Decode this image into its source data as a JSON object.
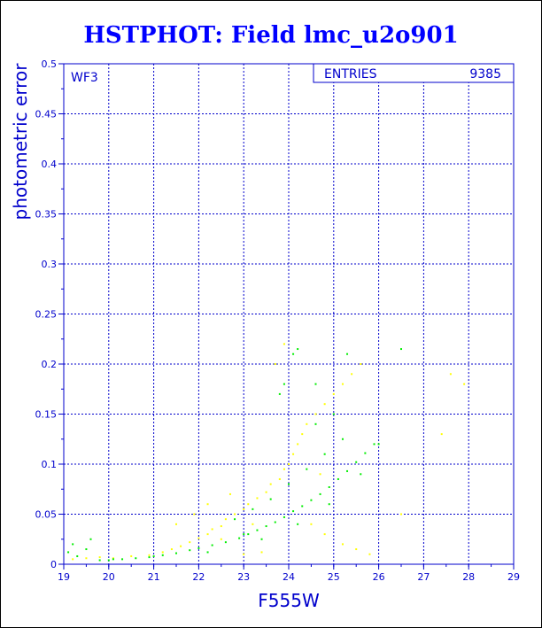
{
  "colors": {
    "axis": "#0000cc",
    "grid": "#0000cc",
    "title": "#0000ff",
    "series_yellow": "#ffff00",
    "series_green": "#00ee00"
  },
  "chart_data": {
    "type": "scatter",
    "title": "HSTPHOT: Field lmc_u2o901",
    "xlabel": "F555W",
    "ylabel": "photometric error",
    "xlim": [
      19,
      29
    ],
    "ylim": [
      0,
      0.5
    ],
    "xticks": [
      "19",
      "20",
      "21",
      "22",
      "23",
      "24",
      "25",
      "26",
      "27",
      "28",
      "29"
    ],
    "yticks": [
      "0",
      "0.05",
      "0.1",
      "0.15",
      "0.2",
      "0.25",
      "0.3",
      "0.35",
      "0.4",
      "0.45",
      "0.5"
    ],
    "grid": true,
    "chip_label": "WF3",
    "stats": {
      "label": "ENTRIES",
      "value": "9385"
    },
    "series": [
      {
        "color": "yellow",
        "points": [
          [
            19.2,
            0.005
          ],
          [
            19.5,
            0.006
          ],
          [
            19.8,
            0.007
          ],
          [
            20.1,
            0.006
          ],
          [
            20.5,
            0.008
          ],
          [
            20.9,
            0.009
          ],
          [
            21.2,
            0.012
          ],
          [
            21.4,
            0.015
          ],
          [
            21.6,
            0.018
          ],
          [
            21.8,
            0.022
          ],
          [
            22.0,
            0.026
          ],
          [
            22.2,
            0.03
          ],
          [
            22.3,
            0.035
          ],
          [
            22.5,
            0.038
          ],
          [
            22.6,
            0.045
          ],
          [
            22.8,
            0.05
          ],
          [
            23.0,
            0.055
          ],
          [
            23.1,
            0.06
          ],
          [
            23.3,
            0.066
          ],
          [
            23.5,
            0.072
          ],
          [
            23.6,
            0.08
          ],
          [
            23.8,
            0.085
          ],
          [
            23.9,
            0.095
          ],
          [
            24.0,
            0.1
          ],
          [
            24.1,
            0.11
          ],
          [
            24.2,
            0.12
          ],
          [
            24.3,
            0.13
          ],
          [
            24.4,
            0.14
          ],
          [
            24.6,
            0.15
          ],
          [
            24.8,
            0.16
          ],
          [
            25.0,
            0.17
          ],
          [
            25.2,
            0.18
          ],
          [
            25.4,
            0.19
          ],
          [
            25.6,
            0.2
          ],
          [
            23.7,
            0.2
          ],
          [
            23.9,
            0.22
          ],
          [
            24.5,
            0.04
          ],
          [
            24.8,
            0.03
          ],
          [
            25.2,
            0.02
          ],
          [
            25.5,
            0.015
          ],
          [
            25.8,
            0.01
          ],
          [
            23.0,
            0.01
          ],
          [
            23.4,
            0.012
          ],
          [
            22.7,
            0.07
          ],
          [
            22.2,
            0.06
          ],
          [
            21.9,
            0.05
          ],
          [
            21.5,
            0.04
          ],
          [
            27.6,
            0.19
          ],
          [
            27.4,
            0.13
          ],
          [
            27.9,
            0.18
          ],
          [
            26.5,
            0.05
          ],
          [
            24.7,
            0.09
          ],
          [
            23.2,
            0.04
          ],
          [
            22.5,
            0.025
          ]
        ]
      },
      {
        "color": "green",
        "points": [
          [
            19.1,
            0.012
          ],
          [
            19.2,
            0.02
          ],
          [
            19.3,
            0.008
          ],
          [
            19.5,
            0.015
          ],
          [
            19.6,
            0.025
          ],
          [
            19.8,
            0.004
          ],
          [
            20.0,
            0.004
          ],
          [
            20.3,
            0.005
          ],
          [
            20.6,
            0.006
          ],
          [
            20.9,
            0.007
          ],
          [
            21.2,
            0.009
          ],
          [
            21.5,
            0.011
          ],
          [
            21.8,
            0.014
          ],
          [
            22.0,
            0.016
          ],
          [
            22.3,
            0.019
          ],
          [
            22.6,
            0.022
          ],
          [
            22.9,
            0.026
          ],
          [
            23.1,
            0.03
          ],
          [
            23.3,
            0.034
          ],
          [
            23.5,
            0.038
          ],
          [
            23.7,
            0.042
          ],
          [
            23.9,
            0.047
          ],
          [
            24.1,
            0.053
          ],
          [
            24.3,
            0.058
          ],
          [
            24.5,
            0.064
          ],
          [
            24.7,
            0.07
          ],
          [
            24.9,
            0.077
          ],
          [
            25.1,
            0.085
          ],
          [
            25.3,
            0.093
          ],
          [
            25.5,
            0.102
          ],
          [
            25.7,
            0.111
          ],
          [
            25.9,
            0.12
          ],
          [
            22.8,
            0.045
          ],
          [
            23.2,
            0.055
          ],
          [
            23.6,
            0.065
          ],
          [
            24.0,
            0.08
          ],
          [
            24.4,
            0.095
          ],
          [
            24.8,
            0.11
          ],
          [
            25.2,
            0.125
          ],
          [
            23.8,
            0.17
          ],
          [
            23.9,
            0.18
          ],
          [
            24.1,
            0.21
          ],
          [
            24.2,
            0.215
          ],
          [
            25.3,
            0.21
          ],
          [
            26.5,
            0.215
          ],
          [
            24.6,
            0.14
          ],
          [
            25.0,
            0.15
          ],
          [
            23.0,
            0.03
          ],
          [
            23.4,
            0.025
          ],
          [
            24.2,
            0.04
          ],
          [
            24.9,
            0.06
          ],
          [
            25.6,
            0.09
          ],
          [
            26.0,
            0.12
          ],
          [
            22.2,
            0.012
          ],
          [
            21.0,
            0.008
          ],
          [
            20.1,
            0.005
          ],
          [
            24.6,
            0.18
          ]
        ]
      }
    ]
  }
}
